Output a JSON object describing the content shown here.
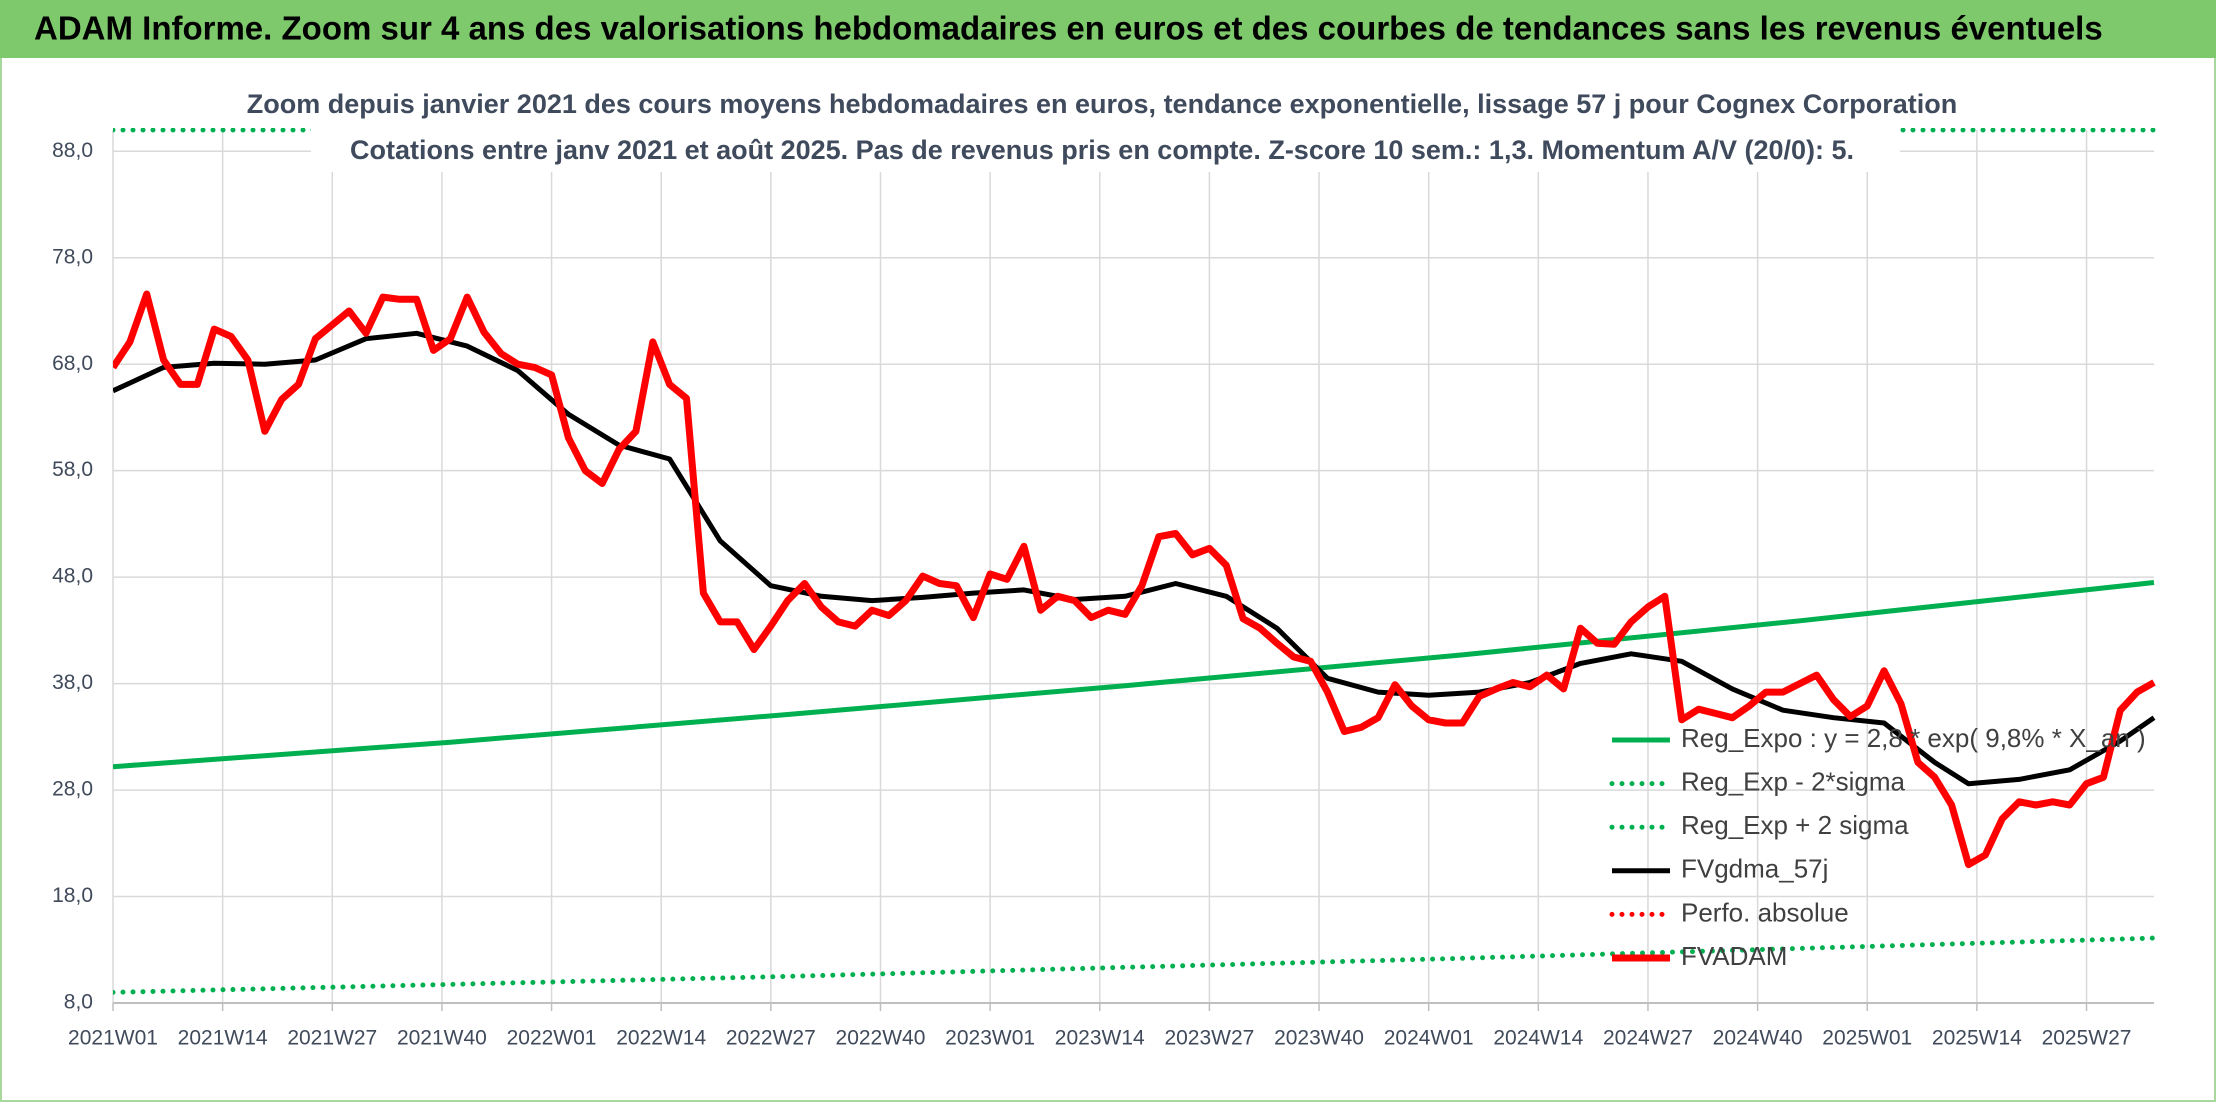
{
  "chart_data": {
    "type": "line",
    "title": "ADAM Informe. Zoom sur 4 ans des valorisations hebdomadaires en euros et des courbes de tendances sans les revenus éventuels",
    "subtitle": [
      "Zoom depuis janvier 2021 des cours moyens hebdomadaires en euros, tendance exponentielle, lissage 57 j pour Cognex Corporation",
      "Cotations entre janv 2021 et août 2025. Pas de revenus pris en compte. Z-score 10 sem.: 1,3. Momentum A/V (20/0): 5."
    ],
    "xlim": [
      0,
      242
    ],
    "xticks": [
      {
        "value": 0,
        "label": "2021W01"
      },
      {
        "value": 13,
        "label": "2021W14"
      },
      {
        "value": 26,
        "label": "2021W27"
      },
      {
        "value": 39,
        "label": "2021W40"
      },
      {
        "value": 52,
        "label": "2022W01"
      },
      {
        "value": 65,
        "label": "2022W14"
      },
      {
        "value": 78,
        "label": "2022W27"
      },
      {
        "value": 91,
        "label": "2022W40"
      },
      {
        "value": 104,
        "label": "2023W01"
      },
      {
        "value": 117,
        "label": "2023W14"
      },
      {
        "value": 130,
        "label": "2023W27"
      },
      {
        "value": 143,
        "label": "2023W40"
      },
      {
        "value": 156,
        "label": "2024W01"
      },
      {
        "value": 169,
        "label": "2024W14"
      },
      {
        "value": 182,
        "label": "2024W27"
      },
      {
        "value": 195,
        "label": "2024W40"
      },
      {
        "value": 208,
        "label": "2025W01"
      },
      {
        "value": 221,
        "label": "2025W14"
      },
      {
        "value": 234,
        "label": "2025W27"
      }
    ],
    "ylim": [
      8,
      90
    ],
    "yticks": [
      {
        "value": 8,
        "label": "8,0"
      },
      {
        "value": 18,
        "label": "18,0"
      },
      {
        "value": 28,
        "label": "28,0"
      },
      {
        "value": 38,
        "label": "38,0"
      },
      {
        "value": 48,
        "label": "48,0"
      },
      {
        "value": 58,
        "label": "58,0"
      },
      {
        "value": 68,
        "label": "68,0"
      },
      {
        "value": 78,
        "label": "78,0"
      },
      {
        "value": 88,
        "label": "88,0"
      }
    ],
    "grid": true,
    "series": [
      {
        "name": "Reg_Expo : y = 2,8 * exp( 9,8% *  X_an )",
        "color": "#00b050",
        "style": "solid",
        "x": [
          0,
          40,
          80,
          120,
          160,
          200,
          242
        ],
        "values": [
          30.2,
          32.5,
          35.1,
          37.8,
          40.7,
          43.9,
          47.5
        ]
      },
      {
        "name": "Reg_Exp - 2*sigma",
        "color": "#00b050",
        "style": "dotted",
        "x": [
          0,
          80,
          160,
          242
        ],
        "values": [
          9.0,
          10.5,
          12.2,
          14.1
        ]
      },
      {
        "name": "Reg_Exp + 2 sigma",
        "color": "#00b050",
        "style": "dotted",
        "x": [
          0,
          80,
          160,
          242
        ],
        "values": [
          90,
          90,
          90,
          90
        ]
      },
      {
        "name": "FVgdma_57j",
        "color": "#000000",
        "style": "solid",
        "x": [
          0,
          6,
          12,
          18,
          24,
          30,
          36,
          42,
          48,
          54,
          60,
          66,
          72,
          78,
          84,
          90,
          96,
          102,
          108,
          114,
          120,
          126,
          132,
          138,
          144,
          150,
          156,
          162,
          168,
          174,
          180,
          186,
          192,
          198,
          204,
          210,
          216,
          220,
          226,
          232,
          238,
          242
        ],
        "values": [
          65.5,
          67.7,
          68.1,
          68.0,
          68.4,
          70.4,
          70.9,
          69.7,
          67.4,
          63.3,
          60.4,
          59.1,
          51.4,
          47.2,
          46.2,
          45.8,
          46.1,
          46.5,
          46.8,
          45.9,
          46.2,
          47.4,
          46.2,
          43.2,
          38.5,
          37.2,
          36.9,
          37.2,
          38.1,
          39.9,
          40.8,
          40.1,
          37.5,
          35.5,
          34.8,
          34.3,
          30.6,
          28.6,
          29.0,
          29.9,
          32.6,
          34.8
        ]
      },
      {
        "name": "Perfo. absolue",
        "color": "#ff0000",
        "style": "dotted",
        "x": [],
        "values": []
      },
      {
        "name": "FVADAM",
        "color": "#ff0000",
        "style": "solid",
        "x": [
          0,
          2,
          4,
          6,
          8,
          10,
          12,
          14,
          16,
          18,
          20,
          22,
          24,
          26,
          28,
          30,
          32,
          34,
          36,
          38,
          40,
          42,
          44,
          46,
          48,
          50,
          52,
          54,
          56,
          58,
          60,
          62,
          64,
          66,
          68,
          70,
          72,
          74,
          76,
          78,
          80,
          82,
          84,
          86,
          88,
          90,
          92,
          94,
          96,
          98,
          100,
          102,
          104,
          106,
          108,
          110,
          112,
          114,
          116,
          118,
          120,
          122,
          124,
          126,
          128,
          130,
          132,
          134,
          136,
          138,
          140,
          142,
          144,
          146,
          148,
          150,
          152,
          154,
          156,
          158,
          160,
          162,
          164,
          166,
          168,
          170,
          172,
          174,
          176,
          178,
          180,
          182,
          184,
          186,
          188,
          190,
          192,
          194,
          196,
          198,
          200,
          202,
          204,
          206,
          208,
          210,
          212,
          214,
          216,
          218,
          220,
          222,
          224,
          226,
          228,
          230,
          232,
          234,
          236,
          238,
          240,
          242
        ],
        "values": [
          67.7,
          70.1,
          74.6,
          68.4,
          66.1,
          66.1,
          71.3,
          70.6,
          68.4,
          61.7,
          64.7,
          66.1,
          70.4,
          71.7,
          73.0,
          70.9,
          74.3,
          74.1,
          74.1,
          69.3,
          70.4,
          74.3,
          71.0,
          69.0,
          68.0,
          67.7,
          67.0,
          61.1,
          58.0,
          56.8,
          60.0,
          61.7,
          70.1,
          66.1,
          64.8,
          46.5,
          43.8,
          43.8,
          41.2,
          43.4,
          45.8,
          47.4,
          45.2,
          43.8,
          43.4,
          44.9,
          44.4,
          45.8,
          48.1,
          47.4,
          47.2,
          44.2,
          48.3,
          47.8,
          50.9,
          44.9,
          46.2,
          45.8,
          44.2,
          44.9,
          44.5,
          47.2,
          51.8,
          52.1,
          50.1,
          50.7,
          49.1,
          44.1,
          43.2,
          41.8,
          40.5,
          40.1,
          37.2,
          33.5,
          33.9,
          34.8,
          37.9,
          35.9,
          34.6,
          34.3,
          34.3,
          36.8,
          37.5,
          38.1,
          37.7,
          38.8,
          37.5,
          43.2,
          41.8,
          41.7,
          43.8,
          45.2,
          46.2,
          34.6,
          35.6,
          35.2,
          34.8,
          35.9,
          37.2,
          37.2,
          38.0,
          38.8,
          36.5,
          34.9,
          35.9,
          39.2,
          36.1,
          30.6,
          29.2,
          26.6,
          21.0,
          21.9,
          25.3,
          26.9,
          26.6,
          26.9,
          26.6,
          28.6,
          29.2,
          35.5,
          37.2,
          38.1
        ]
      }
    ]
  }
}
